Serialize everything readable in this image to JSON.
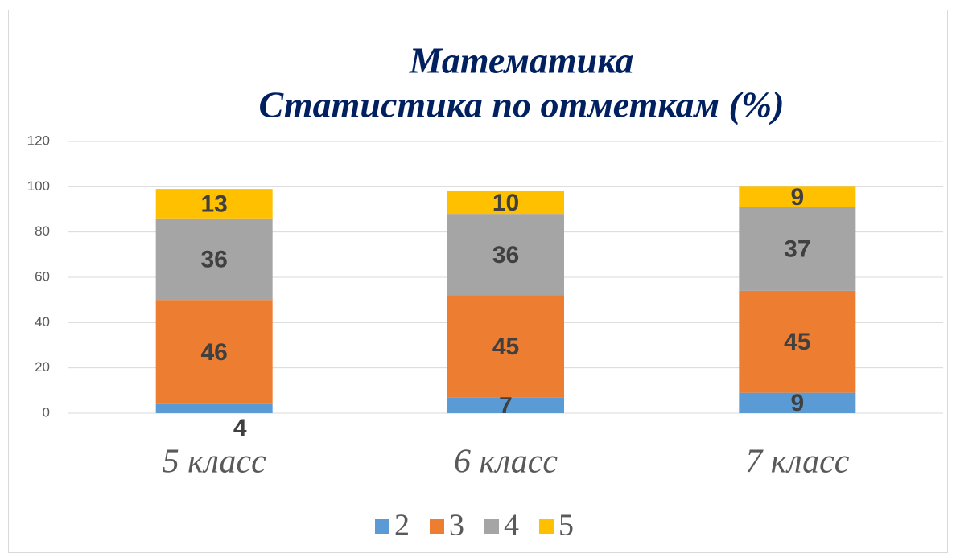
{
  "chart_data": {
    "type": "stacked_bar",
    "title": "Математика",
    "subtitle": "Статистика по отметкам (%)",
    "categories": [
      "5 класс",
      "6 класс",
      "7 класс"
    ],
    "series": [
      {
        "name": "2",
        "color": "#5b9bd5",
        "values": [
          4,
          7,
          9
        ]
      },
      {
        "name": "3",
        "color": "#ed7d31",
        "values": [
          46,
          45,
          45
        ]
      },
      {
        "name": "4",
        "color": "#a5a5a5",
        "values": [
          36,
          36,
          37
        ]
      },
      {
        "name": "5",
        "color": "#ffc000",
        "values": [
          13,
          10,
          9
        ]
      }
    ],
    "ylim": [
      0,
      120
    ],
    "yticks": [
      0,
      20,
      40,
      60,
      80,
      100,
      120
    ],
    "grid": true,
    "legend": "bottom"
  }
}
